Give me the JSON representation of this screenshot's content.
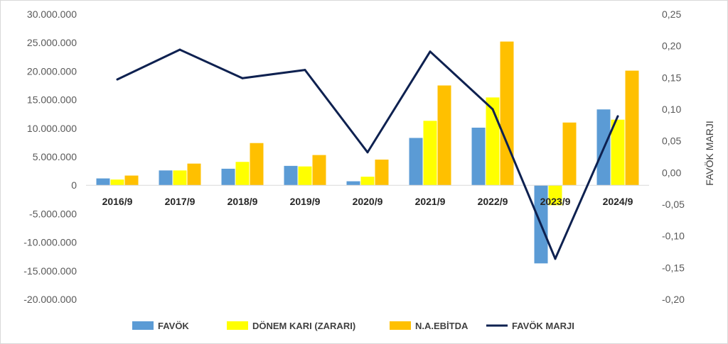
{
  "chart_data": {
    "type": "bar",
    "categories": [
      "2016/9",
      "2017/9",
      "2018/9",
      "2019/9",
      "2020/9",
      "2021/9",
      "2022/9",
      "2023/9",
      "2024/9"
    ],
    "series": [
      {
        "name": "FAVÖK",
        "kind": "bar",
        "axis": "left",
        "color": "#5B9BD5",
        "values": [
          1200000,
          2600000,
          2900000,
          3400000,
          700000,
          8300000,
          10100000,
          -13700000,
          13300000
        ]
      },
      {
        "name": "DÖNEM KARI (ZARARI)",
        "kind": "bar",
        "axis": "left",
        "color": "#FFFF00",
        "values": [
          1000000,
          2600000,
          4100000,
          3300000,
          1500000,
          11300000,
          15400000,
          -3500000,
          11500000
        ]
      },
      {
        "name": "N.A.EBİTDA",
        "kind": "bar",
        "axis": "left",
        "color": "#FFC000",
        "values": [
          1700000,
          3800000,
          7400000,
          5300000,
          4500000,
          17500000,
          25200000,
          11000000,
          20100000
        ]
      },
      {
        "name": "FAVÖK MARJI",
        "kind": "line",
        "axis": "right",
        "color": "#0E2150",
        "values": [
          0.147,
          0.194,
          0.149,
          0.162,
          0.032,
          0.191,
          0.1,
          -0.136,
          0.089
        ]
      }
    ],
    "y_left": {
      "min": -20000000,
      "max": 30000000,
      "step": 5000000,
      "tick_labels": [
        "-20.000.000",
        "-15.000.000",
        "-10.000.000",
        "-5.000.000",
        "0",
        "5.000.000",
        "10.000.000",
        "15.000.000",
        "20.000.000",
        "25.000.000",
        "30.000.000"
      ]
    },
    "y_right": {
      "min": -0.2,
      "max": 0.25,
      "step": 0.05,
      "label": "FAVÖK MARJI",
      "tick_labels": [
        "-0,20",
        "-0,15",
        "-0,10",
        "-0,05",
        "0,00",
        "0,05",
        "0,10",
        "0,15",
        "0,20",
        "0,25"
      ]
    },
    "grid": false,
    "legend_position": "bottom"
  }
}
